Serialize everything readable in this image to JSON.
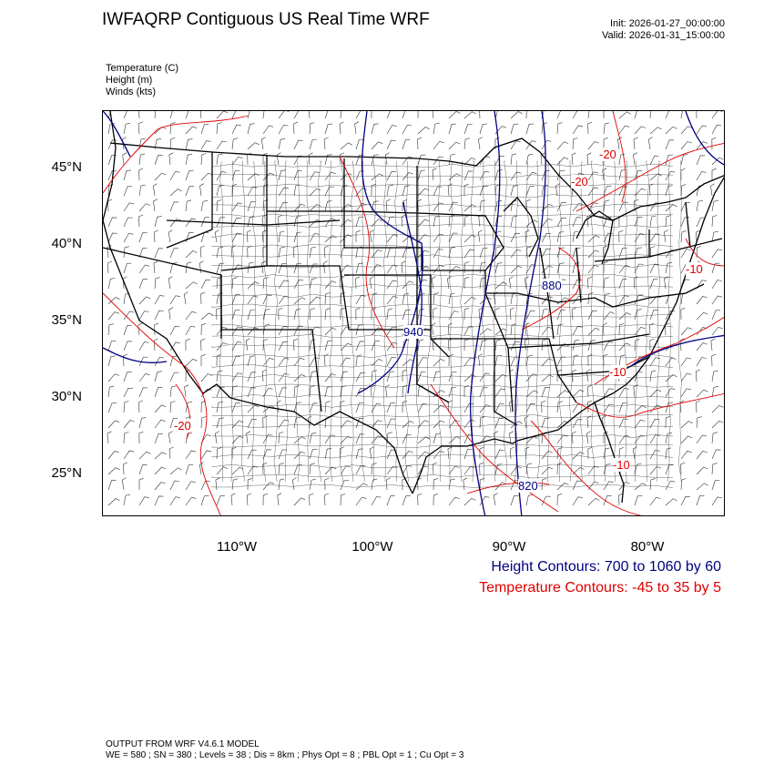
{
  "title": "IWFAQRP Contiguous US Real Time WRF",
  "init": "Init: 2026-01-27_00:00:00",
  "valid": "Valid: 2026-01-31_15:00:00",
  "fields": [
    "Temperature   (C)",
    "Height   (m)",
    "Winds   (kts)"
  ],
  "lat_labels": [
    "45°N",
    "40°N",
    "35°N",
    "30°N",
    "25°N"
  ],
  "lon_labels": [
    "110°W",
    "100°W",
    "90°W",
    "80°W"
  ],
  "contour_labels": {
    "height": [
      "940",
      "880",
      "820"
    ],
    "temperature": [
      "-20",
      "-20",
      "-10",
      "-10",
      "-20",
      "-10"
    ]
  },
  "legend": {
    "height": "Height Contours: 700 to 1060 by 60",
    "temperature": "Temperature Contours: -45 to 35 by 5"
  },
  "footer": {
    "model": "OUTPUT FROM WRF V4.6.1 MODEL",
    "specs": "WE = 580 ; SN = 380 ; Levels = 38 ; Dis = 8km ; Phys Opt = 8 ; PBL Opt = 1 ; Cu Opt = 3"
  },
  "colors": {
    "height": "#000080",
    "temperature": "#e00000",
    "border": "#000000"
  }
}
